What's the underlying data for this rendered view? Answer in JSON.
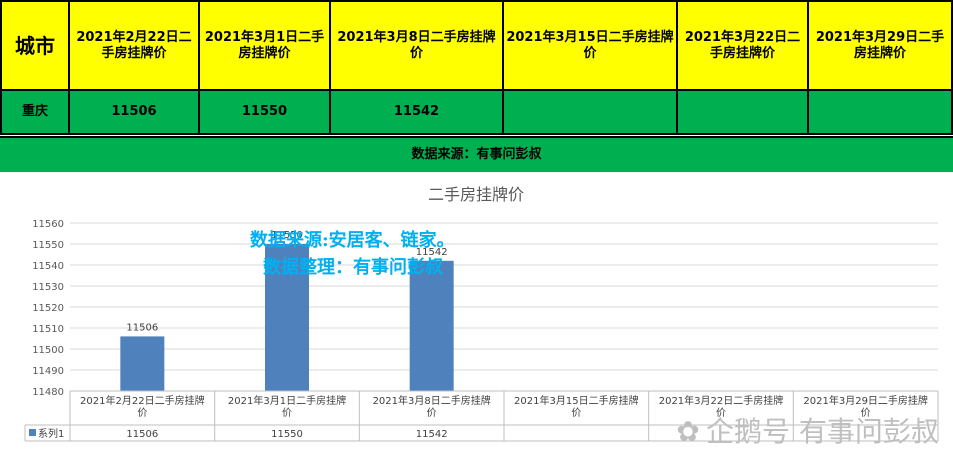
{
  "table": {
    "city_header": "城市",
    "columns": [
      "2021年2月22日二手房挂牌价",
      "2021年3月1日二手房挂牌价",
      "2021年3月8日二手房挂牌价",
      "2021年3月15日二手房挂牌价",
      "2021年3月22日二手房挂牌价",
      "2021年3月29日二手房挂牌价"
    ],
    "row": {
      "city": "重庆",
      "values": [
        "11506",
        "11550",
        "11542",
        "",
        "",
        ""
      ]
    },
    "source_line": "数据来源：有事问彭叔"
  },
  "watermark": {
    "line1": "数据来源:安居客、链家。",
    "line2": "数据整理：有事问彭叔",
    "brand": "企鹅号 有事问彭叔"
  },
  "colors": {
    "header_bg": "#ffff00",
    "row_bg": "#00b050",
    "bar": "#4f81bd",
    "watermark": "#00b0f0"
  },
  "chart_data": {
    "type": "bar",
    "title": "二手房挂牌价",
    "categories": [
      "2021年2月22日二手房挂牌价",
      "2021年3月1日二手房挂牌价",
      "2021年3月8日二手房挂牌价",
      "2021年3月15日二手房挂牌价",
      "2021年3月22日二手房挂牌价",
      "2021年3月29日二手房挂牌价"
    ],
    "series": [
      {
        "name": "系列1",
        "values": [
          11506,
          11550,
          11542,
          null,
          null,
          null
        ]
      }
    ],
    "yticks": [
      11480,
      11490,
      11500,
      11510,
      11520,
      11530,
      11540,
      11550,
      11560
    ],
    "ylim": [
      11480,
      11560
    ],
    "grid": true,
    "legend": "data-table"
  }
}
